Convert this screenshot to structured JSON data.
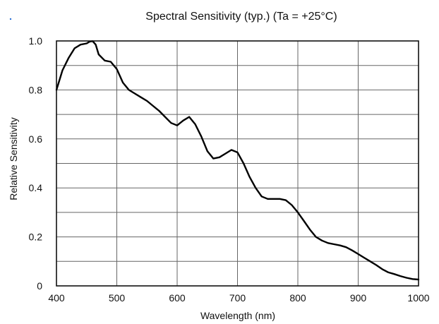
{
  "chart_data": {
    "type": "line",
    "title": "Spectral Sensitivity (typ.) (Ta = +25°C)",
    "xlabel": "Wavelength (nm)",
    "ylabel": "Relative Sensitivity",
    "xlim": [
      400,
      1000
    ],
    "ylim": [
      0,
      1.0
    ],
    "x_ticks": [
      400,
      500,
      600,
      700,
      800,
      900,
      1000
    ],
    "y_ticks": [
      0,
      0.2,
      0.4,
      0.6,
      0.8,
      1.0
    ],
    "x_tick_labels": [
      "400",
      "500",
      "600",
      "700",
      "800",
      "900",
      "1000"
    ],
    "y_tick_labels": [
      "0",
      "0.2",
      "0.4",
      "0.6",
      "0.8",
      "1.0"
    ],
    "y_minor_gridlines": [
      0.1,
      0.3,
      0.5,
      0.7,
      0.9
    ],
    "grid": true,
    "series": [
      {
        "x": [
          400,
          410,
          420,
          430,
          440,
          450,
          455,
          460,
          465,
          470,
          480,
          490,
          500,
          510,
          520,
          530,
          540,
          550,
          560,
          570,
          580,
          590,
          600,
          610,
          620,
          630,
          640,
          650,
          660,
          670,
          680,
          690,
          700,
          710,
          720,
          730,
          740,
          750,
          760,
          770,
          780,
          790,
          800,
          810,
          820,
          830,
          840,
          850,
          860,
          870,
          880,
          890,
          900,
          910,
          920,
          930,
          940,
          950,
          960,
          970,
          980,
          990,
          1000
        ],
        "y": [
          0.8,
          0.88,
          0.93,
          0.97,
          0.985,
          0.99,
          0.997,
          0.999,
          0.985,
          0.945,
          0.92,
          0.915,
          0.885,
          0.83,
          0.8,
          0.785,
          0.77,
          0.755,
          0.735,
          0.715,
          0.69,
          0.665,
          0.655,
          0.675,
          0.69,
          0.66,
          0.61,
          0.55,
          0.52,
          0.525,
          0.54,
          0.555,
          0.545,
          0.5,
          0.445,
          0.4,
          0.365,
          0.355,
          0.355,
          0.355,
          0.35,
          0.33,
          0.3,
          0.265,
          0.23,
          0.2,
          0.185,
          0.175,
          0.17,
          0.165,
          0.158,
          0.145,
          0.13,
          0.115,
          0.1,
          0.085,
          0.068,
          0.055,
          0.048,
          0.04,
          0.033,
          0.028,
          0.026
        ]
      }
    ]
  }
}
